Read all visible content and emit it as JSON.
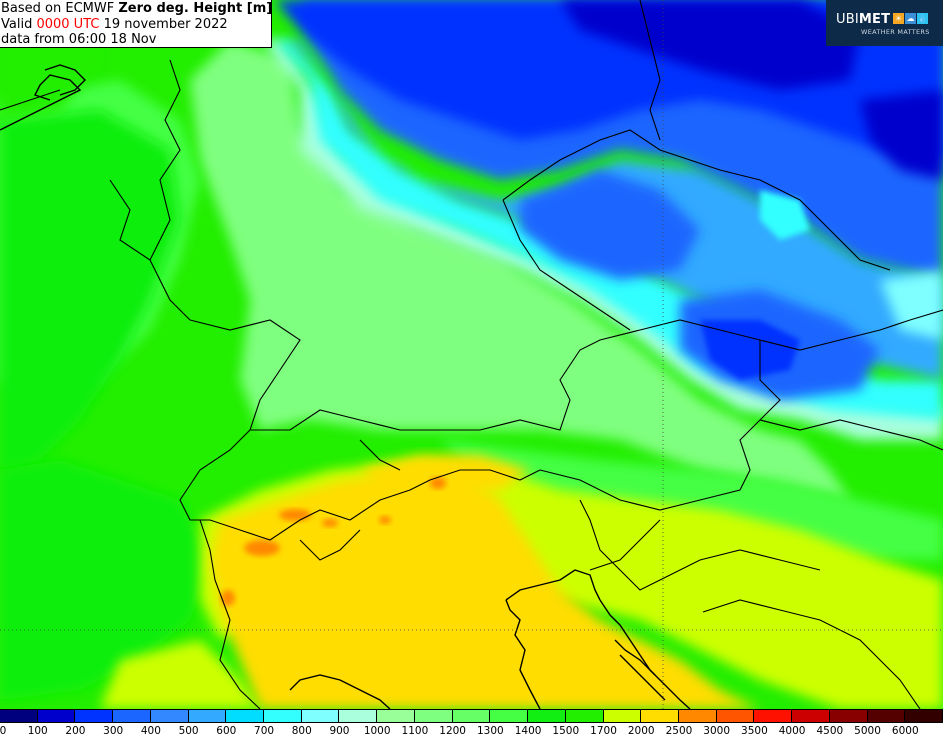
{
  "header": {
    "line1_prefix": "Based on ECMWF ",
    "line1_bold": "Zero deg. Height [m]",
    "line2_prefix": "Valid ",
    "line2_red": "0000 UTC",
    "line2_suffix": " 19 november 2022",
    "line3": "data from 06:00 18 Nov"
  },
  "logo": {
    "brand_strong": "UBI",
    "brand_rest": "MET",
    "tagline": "WEATHER MATTERS",
    "icon_names": [
      "sun-icon",
      "cloud-icon",
      "drop-icon"
    ],
    "icon_colors": [
      "#f5a623",
      "#3a8fd6",
      "#2ec4f1"
    ]
  },
  "legend": {
    "colors": [
      "#00007f",
      "#0000cc",
      "#0033ff",
      "#1a66ff",
      "#3388ff",
      "#33aaff",
      "#00ddff",
      "#33ffff",
      "#7fffff",
      "#aaffdd",
      "#99ff99",
      "#7fff7f",
      "#66ff66",
      "#44ff44",
      "#11ee11",
      "#22ee00",
      "#ccff00",
      "#ffdd00",
      "#ff8800",
      "#ff5500",
      "#ff1100",
      "#cc0000",
      "#880000",
      "#550000",
      "#330000"
    ],
    "labels": [
      "0",
      "100",
      "200",
      "300",
      "400",
      "500",
      "600",
      "700",
      "800",
      "900",
      "1000",
      "1100",
      "1200",
      "1300",
      "1400",
      "1500",
      "1700",
      "2000",
      "2500",
      "3000",
      "3500",
      "4000",
      "4500",
      "5000",
      "6000"
    ]
  }
}
